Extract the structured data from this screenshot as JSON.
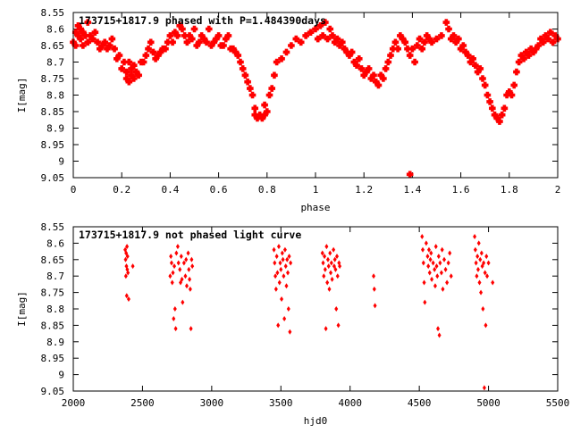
{
  "chart_data": [
    {
      "type": "scatter",
      "title": "173715+1817.9 phased with P=1.484390days",
      "xlabel": "phase",
      "ylabel": "I[mag]",
      "xlim": [
        0,
        2
      ],
      "ylim": [
        9.05,
        8.55
      ],
      "y_inverted": true,
      "xticks": [
        "0",
        "0.2",
        "0.4",
        "0.6",
        "0.8",
        "1",
        "1.2",
        "1.4",
        "1.6",
        "1.8",
        "2"
      ],
      "yticks": [
        "8.55",
        "8.6",
        "8.65",
        "8.7",
        "8.75",
        "8.8",
        "8.85",
        "8.9",
        "8.95",
        "9",
        "9.05"
      ],
      "marker": "filled-star",
      "color": "#ff0000",
      "grid": false,
      "legend": "none",
      "points": [
        [
          0.0,
          8.64
        ],
        [
          0.01,
          8.61
        ],
        [
          0.01,
          8.65
        ],
        [
          0.02,
          8.59
        ],
        [
          0.02,
          8.62
        ],
        [
          0.03,
          8.6
        ],
        [
          0.03,
          8.63
        ],
        [
          0.04,
          8.65
        ],
        [
          0.04,
          8.61
        ],
        [
          0.05,
          8.62
        ],
        [
          0.06,
          8.58
        ],
        [
          0.06,
          8.64
        ],
        [
          0.07,
          8.62
        ],
        [
          0.08,
          8.63
        ],
        [
          0.09,
          8.61
        ],
        [
          0.1,
          8.64
        ],
        [
          0.11,
          8.66
        ],
        [
          0.12,
          8.65
        ],
        [
          0.13,
          8.64
        ],
        [
          0.14,
          8.66
        ],
        [
          0.15,
          8.65
        ],
        [
          0.16,
          8.63
        ],
        [
          0.17,
          8.66
        ],
        [
          0.18,
          8.69
        ],
        [
          0.19,
          8.68
        ],
        [
          0.2,
          8.72
        ],
        [
          0.21,
          8.7
        ],
        [
          0.22,
          8.75
        ],
        [
          0.22,
          8.73
        ],
        [
          0.23,
          8.76
        ],
        [
          0.23,
          8.7
        ],
        [
          0.24,
          8.72
        ],
        [
          0.24,
          8.74
        ],
        [
          0.25,
          8.75
        ],
        [
          0.25,
          8.71
        ],
        [
          0.26,
          8.73
        ],
        [
          0.27,
          8.74
        ],
        [
          0.28,
          8.7
        ],
        [
          0.29,
          8.7
        ],
        [
          0.3,
          8.68
        ],
        [
          0.31,
          8.66
        ],
        [
          0.32,
          8.64
        ],
        [
          0.33,
          8.67
        ],
        [
          0.34,
          8.69
        ],
        [
          0.35,
          8.68
        ],
        [
          0.36,
          8.67
        ],
        [
          0.37,
          8.66
        ],
        [
          0.38,
          8.66
        ],
        [
          0.39,
          8.64
        ],
        [
          0.4,
          8.62
        ],
        [
          0.41,
          8.64
        ],
        [
          0.42,
          8.61
        ],
        [
          0.43,
          8.62
        ],
        [
          0.44,
          8.59
        ],
        [
          0.45,
          8.6
        ],
        [
          0.46,
          8.62
        ],
        [
          0.47,
          8.64
        ],
        [
          0.48,
          8.62
        ],
        [
          0.49,
          8.63
        ],
        [
          0.5,
          8.6
        ],
        [
          0.51,
          8.65
        ],
        [
          0.52,
          8.64
        ],
        [
          0.53,
          8.62
        ],
        [
          0.54,
          8.63
        ],
        [
          0.55,
          8.64
        ],
        [
          0.56,
          8.6
        ],
        [
          0.57,
          8.65
        ],
        [
          0.58,
          8.64
        ],
        [
          0.59,
          8.63
        ],
        [
          0.6,
          8.62
        ],
        [
          0.61,
          8.65
        ],
        [
          0.62,
          8.65
        ],
        [
          0.63,
          8.63
        ],
        [
          0.64,
          8.62
        ],
        [
          0.65,
          8.66
        ],
        [
          0.66,
          8.66
        ],
        [
          0.67,
          8.67
        ],
        [
          0.68,
          8.68
        ],
        [
          0.69,
          8.7
        ],
        [
          0.7,
          8.72
        ],
        [
          0.71,
          8.74
        ],
        [
          0.72,
          8.76
        ],
        [
          0.73,
          8.78
        ],
        [
          0.74,
          8.8
        ],
        [
          0.75,
          8.84
        ],
        [
          0.75,
          8.86
        ],
        [
          0.76,
          8.87
        ],
        [
          0.77,
          8.86
        ],
        [
          0.78,
          8.87
        ],
        [
          0.79,
          8.86
        ],
        [
          0.79,
          8.83
        ],
        [
          0.8,
          8.85
        ],
        [
          0.81,
          8.8
        ],
        [
          0.82,
          8.78
        ],
        [
          0.83,
          8.74
        ],
        [
          0.84,
          8.7
        ],
        [
          0.86,
          8.69
        ],
        [
          0.88,
          8.67
        ],
        [
          0.9,
          8.65
        ],
        [
          0.92,
          8.63
        ],
        [
          0.94,
          8.64
        ],
        [
          0.96,
          8.62
        ],
        [
          0.98,
          8.61
        ],
        [
          1.0,
          8.6
        ],
        [
          1.01,
          8.63
        ],
        [
          1.02,
          8.59
        ],
        [
          1.03,
          8.62
        ],
        [
          1.04,
          8.58
        ],
        [
          1.05,
          8.63
        ],
        [
          1.06,
          8.6
        ],
        [
          1.07,
          8.62
        ],
        [
          1.08,
          8.64
        ],
        [
          1.09,
          8.63
        ],
        [
          1.1,
          8.65
        ],
        [
          1.11,
          8.64
        ],
        [
          1.12,
          8.66
        ],
        [
          1.13,
          8.67
        ],
        [
          1.14,
          8.68
        ],
        [
          1.15,
          8.67
        ],
        [
          1.16,
          8.7
        ],
        [
          1.17,
          8.71
        ],
        [
          1.18,
          8.69
        ],
        [
          1.19,
          8.72
        ],
        [
          1.2,
          8.74
        ],
        [
          1.21,
          8.73
        ],
        [
          1.22,
          8.72
        ],
        [
          1.23,
          8.75
        ],
        [
          1.24,
          8.74
        ],
        [
          1.25,
          8.76
        ],
        [
          1.26,
          8.77
        ],
        [
          1.27,
          8.74
        ],
        [
          1.28,
          8.75
        ],
        [
          1.29,
          8.72
        ],
        [
          1.3,
          8.7
        ],
        [
          1.31,
          8.68
        ],
        [
          1.32,
          8.66
        ],
        [
          1.33,
          8.64
        ],
        [
          1.34,
          8.66
        ],
        [
          1.35,
          8.62
        ],
        [
          1.36,
          8.63
        ],
        [
          1.37,
          8.64
        ],
        [
          1.38,
          8.66
        ],
        [
          1.39,
          8.68
        ],
        [
          1.39,
          9.04
        ],
        [
          1.4,
          8.66
        ],
        [
          1.41,
          8.7
        ],
        [
          1.42,
          8.65
        ],
        [
          1.43,
          8.63
        ],
        [
          1.44,
          8.66
        ],
        [
          1.45,
          8.64
        ],
        [
          1.46,
          8.62
        ],
        [
          1.47,
          8.63
        ],
        [
          1.48,
          8.64
        ],
        [
          1.5,
          8.63
        ],
        [
          1.52,
          8.62
        ],
        [
          1.54,
          8.58
        ],
        [
          1.55,
          8.6
        ],
        [
          1.56,
          8.63
        ],
        [
          1.57,
          8.62
        ],
        [
          1.58,
          8.64
        ],
        [
          1.59,
          8.63
        ],
        [
          1.6,
          8.66
        ],
        [
          1.61,
          8.65
        ],
        [
          1.62,
          8.67
        ],
        [
          1.63,
          8.68
        ],
        [
          1.64,
          8.7
        ],
        [
          1.65,
          8.69
        ],
        [
          1.66,
          8.71
        ],
        [
          1.67,
          8.73
        ],
        [
          1.68,
          8.72
        ],
        [
          1.69,
          8.75
        ],
        [
          1.7,
          8.77
        ],
        [
          1.71,
          8.8
        ],
        [
          1.72,
          8.82
        ],
        [
          1.73,
          8.84
        ],
        [
          1.74,
          8.86
        ],
        [
          1.75,
          8.87
        ],
        [
          1.76,
          8.88
        ],
        [
          1.77,
          8.86
        ],
        [
          1.78,
          8.84
        ],
        [
          1.79,
          8.8
        ],
        [
          1.8,
          8.79
        ],
        [
          1.81,
          8.8
        ],
        [
          1.82,
          8.77
        ],
        [
          1.83,
          8.73
        ],
        [
          1.84,
          8.7
        ],
        [
          1.85,
          8.68
        ],
        [
          1.86,
          8.69
        ],
        [
          1.87,
          8.67
        ],
        [
          1.88,
          8.68
        ],
        [
          1.89,
          8.66
        ],
        [
          1.9,
          8.67
        ],
        [
          1.91,
          8.66
        ],
        [
          1.92,
          8.65
        ],
        [
          1.93,
          8.63
        ],
        [
          1.94,
          8.64
        ],
        [
          1.95,
          8.62
        ],
        [
          1.96,
          8.63
        ],
        [
          1.97,
          8.61
        ],
        [
          1.98,
          8.64
        ],
        [
          1.99,
          8.62
        ],
        [
          2.0,
          8.63
        ]
      ]
    },
    {
      "type": "scatter",
      "title": "173715+1817.9 not phased light curve",
      "xlabel": "hjd0",
      "ylabel": "I[mag]",
      "xlim": [
        2000,
        5500
      ],
      "ylim": [
        9.05,
        8.55
      ],
      "y_inverted": true,
      "xticks": [
        "2000",
        "2500",
        "3000",
        "3500",
        "4000",
        "4500",
        "5000",
        "5500"
      ],
      "yticks": [
        "8.55",
        "8.6",
        "8.65",
        "8.7",
        "8.75",
        "8.8",
        "8.85",
        "8.9",
        "8.95",
        "9",
        "9.05"
      ],
      "marker": "filled-diamond",
      "color": "#ff0000",
      "grid": false,
      "legend": "none",
      "points": [
        [
          2375,
          8.62
        ],
        [
          2378,
          8.65
        ],
        [
          2380,
          8.7
        ],
        [
          2382,
          8.63
        ],
        [
          2384,
          8.67
        ],
        [
          2386,
          8.76
        ],
        [
          2388,
          8.61
        ],
        [
          2390,
          8.68
        ],
        [
          2392,
          8.64
        ],
        [
          2395,
          8.69
        ],
        [
          2400,
          8.77
        ],
        [
          2430,
          8.67
        ],
        [
          2700,
          8.7
        ],
        [
          2705,
          8.64
        ],
        [
          2710,
          8.66
        ],
        [
          2715,
          8.72
        ],
        [
          2720,
          8.69
        ],
        [
          2725,
          8.83
        ],
        [
          2730,
          8.67
        ],
        [
          2735,
          8.8
        ],
        [
          2740,
          8.86
        ],
        [
          2745,
          8.63
        ],
        [
          2755,
          8.61
        ],
        [
          2760,
          8.66
        ],
        [
          2770,
          8.68
        ],
        [
          2775,
          8.72
        ],
        [
          2780,
          8.64
        ],
        [
          2785,
          8.71
        ],
        [
          2790,
          8.78
        ],
        [
          2800,
          8.66
        ],
        [
          2810,
          8.7
        ],
        [
          2815,
          8.65
        ],
        [
          2820,
          8.73
        ],
        [
          2830,
          8.63
        ],
        [
          2835,
          8.68
        ],
        [
          2840,
          8.71
        ],
        [
          2845,
          8.74
        ],
        [
          2850,
          8.86
        ],
        [
          2855,
          8.65
        ],
        [
          2860,
          8.67
        ],
        [
          3450,
          8.62
        ],
        [
          3455,
          8.66
        ],
        [
          3460,
          8.7
        ],
        [
          3465,
          8.74
        ],
        [
          3470,
          8.64
        ],
        [
          3475,
          8.69
        ],
        [
          3480,
          8.85
        ],
        [
          3485,
          8.61
        ],
        [
          3490,
          8.72
        ],
        [
          3495,
          8.66
        ],
        [
          3500,
          8.68
        ],
        [
          3505,
          8.77
        ],
        [
          3510,
          8.63
        ],
        [
          3515,
          8.65
        ],
        [
          3520,
          8.7
        ],
        [
          3525,
          8.83
        ],
        [
          3530,
          8.62
        ],
        [
          3535,
          8.67
        ],
        [
          3540,
          8.73
        ],
        [
          3545,
          8.65
        ],
        [
          3550,
          8.69
        ],
        [
          3555,
          8.8
        ],
        [
          3560,
          8.64
        ],
        [
          3565,
          8.87
        ],
        [
          3570,
          8.66
        ],
        [
          3800,
          8.63
        ],
        [
          3805,
          8.66
        ],
        [
          3810,
          8.7
        ],
        [
          3815,
          8.64
        ],
        [
          3820,
          8.68
        ],
        [
          3825,
          8.86
        ],
        [
          3830,
          8.61
        ],
        [
          3835,
          8.72
        ],
        [
          3840,
          8.65
        ],
        [
          3845,
          8.67
        ],
        [
          3850,
          8.74
        ],
        [
          3855,
          8.63
        ],
        [
          3860,
          8.69
        ],
        [
          3865,
          8.66
        ],
        [
          3870,
          8.71
        ],
        [
          3880,
          8.62
        ],
        [
          3885,
          8.67
        ],
        [
          3890,
          8.65
        ],
        [
          3895,
          8.68
        ],
        [
          3900,
          8.8
        ],
        [
          3905,
          8.64
        ],
        [
          3910,
          8.7
        ],
        [
          3915,
          8.85
        ],
        [
          3920,
          8.66
        ],
        [
          3925,
          8.67
        ],
        [
          4170,
          8.7
        ],
        [
          4175,
          8.74
        ],
        [
          4180,
          8.79
        ],
        [
          4520,
          8.58
        ],
        [
          4525,
          8.62
        ],
        [
          4530,
          8.66
        ],
        [
          4535,
          8.72
        ],
        [
          4540,
          8.78
        ],
        [
          4550,
          8.6
        ],
        [
          4560,
          8.64
        ],
        [
          4565,
          8.67
        ],
        [
          4570,
          8.62
        ],
        [
          4575,
          8.69
        ],
        [
          4580,
          8.65
        ],
        [
          4585,
          8.63
        ],
        [
          4590,
          8.71
        ],
        [
          4600,
          8.66
        ],
        [
          4610,
          8.68
        ],
        [
          4615,
          8.73
        ],
        [
          4620,
          8.61
        ],
        [
          4625,
          8.67
        ],
        [
          4630,
          8.7
        ],
        [
          4635,
          8.86
        ],
        [
          4640,
          8.64
        ],
        [
          4645,
          8.88
        ],
        [
          4650,
          8.66
        ],
        [
          4660,
          8.69
        ],
        [
          4665,
          8.62
        ],
        [
          4670,
          8.74
        ],
        [
          4680,
          8.65
        ],
        [
          4690,
          8.68
        ],
        [
          4700,
          8.72
        ],
        [
          4710,
          8.66
        ],
        [
          4720,
          8.63
        ],
        [
          4730,
          8.7
        ],
        [
          4900,
          8.58
        ],
        [
          4905,
          8.62
        ],
        [
          4910,
          8.66
        ],
        [
          4915,
          8.7
        ],
        [
          4920,
          8.64
        ],
        [
          4925,
          8.68
        ],
        [
          4930,
          8.6
        ],
        [
          4935,
          8.72
        ],
        [
          4940,
          8.65
        ],
        [
          4945,
          8.75
        ],
        [
          4950,
          8.63
        ],
        [
          4955,
          8.67
        ],
        [
          4960,
          8.8
        ],
        [
          4965,
          8.66
        ],
        [
          4970,
          9.04
        ],
        [
          4975,
          8.69
        ],
        [
          4980,
          8.85
        ],
        [
          4985,
          8.64
        ],
        [
          4990,
          8.7
        ],
        [
          5000,
          8.66
        ],
        [
          5030,
          8.72
        ]
      ]
    }
  ]
}
